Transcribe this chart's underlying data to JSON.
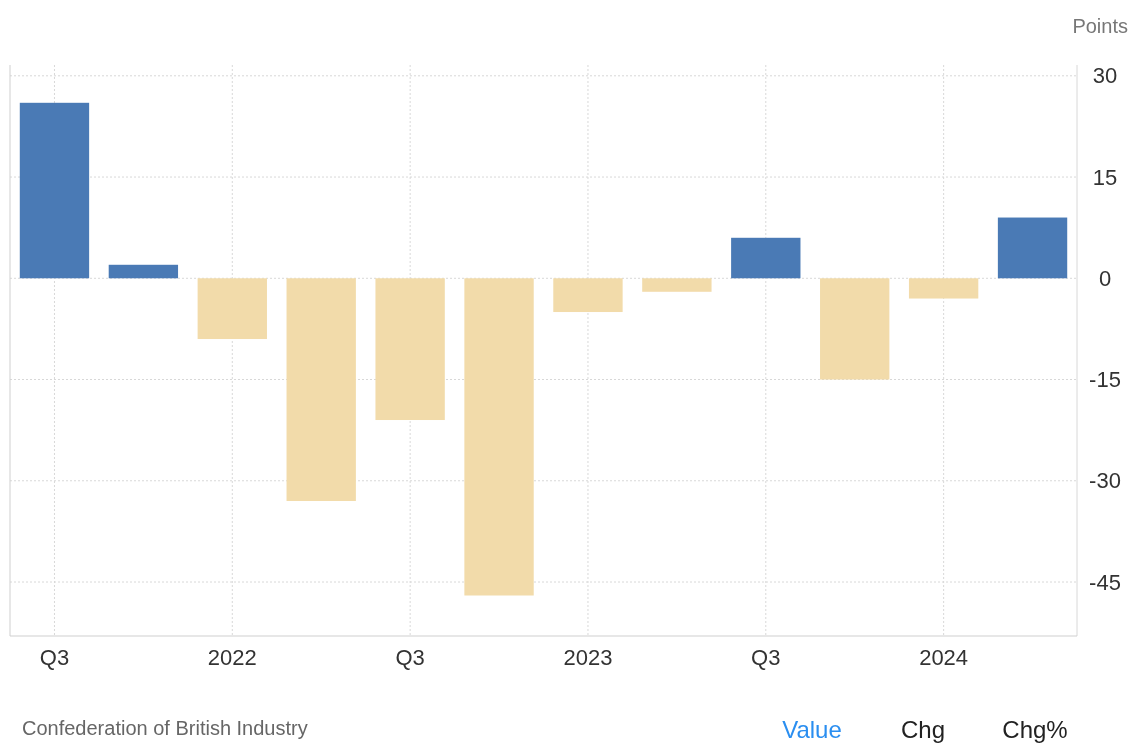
{
  "chart_data": {
    "type": "bar",
    "ylabel": "Points",
    "categories": [
      "Q3",
      null,
      "2022",
      null,
      "Q3",
      null,
      "2023",
      null,
      "Q3",
      null,
      "2024",
      null
    ],
    "values": [
      26,
      2,
      -9,
      -33,
      -21,
      -47,
      -5,
      -2,
      6,
      -15,
      -3,
      9
    ],
    "colors": [
      "#4a7ab5",
      "#4a7ab5",
      "#f2dbaa",
      "#f2dbaa",
      "#f2dbaa",
      "#f2dbaa",
      "#f2dbaa",
      "#f2dbaa",
      "#4a7ab5",
      "#f2dbaa",
      "#f2dbaa",
      "#4a7ab5"
    ],
    "ylim": [
      -53,
      31.6
    ],
    "yticks": [
      -45,
      -30,
      -15,
      0,
      15,
      30
    ],
    "grid": true,
    "annotations": [
      "Confederation of British Industry",
      "Value",
      "Chg",
      "Chg%"
    ]
  }
}
